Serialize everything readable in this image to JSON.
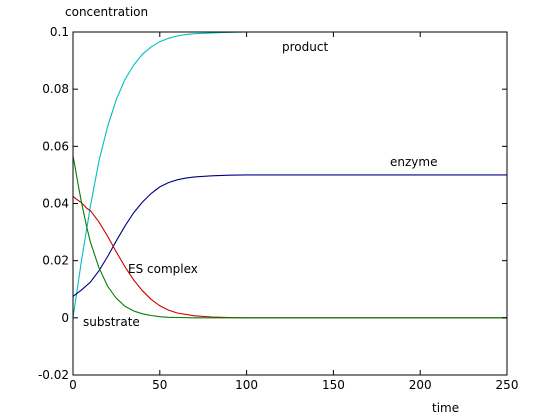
{
  "chart_data": {
    "type": "line",
    "title": "",
    "xlabel": "time",
    "ylabel": "concentration",
    "xlim": [
      0,
      250
    ],
    "ylim": [
      -0.02,
      0.1
    ],
    "xticks": [
      0,
      50,
      100,
      150,
      200,
      250
    ],
    "xtick_labels": [
      "0",
      "50",
      "100",
      "150",
      "200",
      "250"
    ],
    "yticks": [
      -0.02,
      0,
      0.02,
      0.04,
      0.06,
      0.08,
      0.1
    ],
    "ytick_labels": [
      "-0.02",
      "0",
      "0.02",
      "0.04",
      "0.06",
      "0.08",
      "0.1"
    ],
    "grid": false,
    "series": [
      {
        "name": "product",
        "color": "#00bfbf",
        "x": [
          0,
          5,
          10,
          15,
          20,
          25,
          30,
          35,
          40,
          45,
          50,
          55,
          60,
          65,
          70,
          80,
          90,
          100,
          150,
          200,
          250
        ],
        "y": [
          0.0,
          0.0205,
          0.039,
          0.055,
          0.067,
          0.0765,
          0.0835,
          0.0885,
          0.0922,
          0.0948,
          0.0966,
          0.0978,
          0.0986,
          0.0991,
          0.0994,
          0.0997,
          0.0999,
          0.1,
          0.1,
          0.1,
          0.1
        ]
      },
      {
        "name": "enzyme",
        "color": "#00008b",
        "x": [
          0,
          5,
          10,
          15,
          20,
          25,
          30,
          35,
          40,
          45,
          50,
          55,
          60,
          65,
          70,
          80,
          90,
          100,
          150,
          200,
          250
        ],
        "y": [
          0.0075,
          0.0098,
          0.0125,
          0.0165,
          0.0215,
          0.027,
          0.0322,
          0.0368,
          0.0405,
          0.0435,
          0.0458,
          0.0473,
          0.0483,
          0.0489,
          0.0493,
          0.0497,
          0.0499,
          0.05,
          0.05,
          0.05,
          0.05
        ]
      },
      {
        "name": "ES complex",
        "color": "#cc0000",
        "x": [
          0,
          2,
          5,
          8,
          10,
          15,
          20,
          25,
          30,
          35,
          40,
          45,
          50,
          55,
          60,
          70,
          80,
          90,
          100,
          150,
          200,
          250
        ],
        "y": [
          0.0425,
          0.0415,
          0.0402,
          0.0383,
          0.0375,
          0.0335,
          0.0285,
          0.023,
          0.0178,
          0.0132,
          0.0095,
          0.0065,
          0.0042,
          0.0027,
          0.0017,
          0.0007,
          0.0003,
          0.0001,
          0.0,
          0.0,
          0.0,
          0.0
        ]
      },
      {
        "name": "substrate",
        "color": "#007f00",
        "x": [
          0,
          1,
          3,
          5,
          8,
          10,
          15,
          20,
          25,
          30,
          35,
          40,
          45,
          50,
          55,
          60,
          70,
          80,
          100,
          150,
          200,
          250
        ],
        "y": [
          0.0565,
          0.0535,
          0.0465,
          0.04,
          0.0315,
          0.0265,
          0.0175,
          0.011,
          0.0068,
          0.004,
          0.0024,
          0.0014,
          0.0008,
          0.0004,
          0.0002,
          0.0001,
          0.0,
          0.0,
          0.0,
          0.0,
          0.0,
          0.0
        ]
      }
    ],
    "annotations": {
      "product": "product",
      "enzyme": "enzyme",
      "es_complex": "ES complex",
      "substrate": "substrate"
    }
  }
}
